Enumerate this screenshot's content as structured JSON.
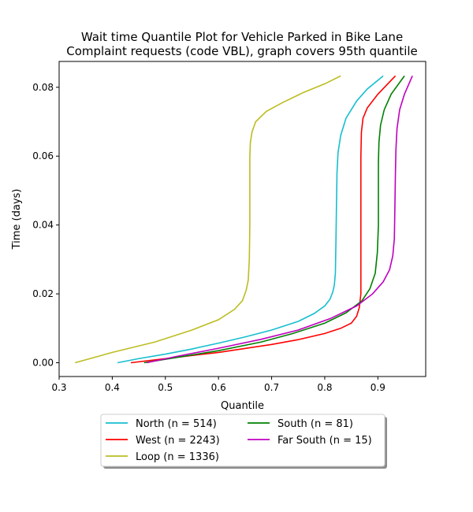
{
  "chart_data": {
    "type": "line",
    "title": "Wait time Quantile Plot for Vehicle Parked in Bike Lane",
    "subtitle": "Complaint  requests (code VBL), graph covers 95th quantile",
    "xlabel": "Quantile",
    "ylabel": "Time (days)",
    "xlim": [
      0.3,
      0.99
    ],
    "ylim": [
      -0.004,
      0.0875
    ],
    "xticks": [
      0.3,
      0.4,
      0.5,
      0.6,
      0.7,
      0.8,
      0.9
    ],
    "xtick_labels": [
      "0.3",
      "0.4",
      "0.5",
      "0.6",
      "0.7",
      "0.8",
      "0.9"
    ],
    "yticks": [
      0.0,
      0.02,
      0.04,
      0.06,
      0.08
    ],
    "ytick_labels": [
      "0.00",
      "0.02",
      "0.04",
      "0.06",
      "0.08"
    ],
    "grid": false,
    "legend_placement": "below",
    "series": [
      {
        "name": "North (n = 514)",
        "color": "#17becf",
        "x": [
          0.41,
          0.45,
          0.5,
          0.55,
          0.6,
          0.65,
          0.7,
          0.75,
          0.78,
          0.8,
          0.81,
          0.815,
          0.818,
          0.82,
          0.821,
          0.822,
          0.823,
          0.825,
          0.83,
          0.84,
          0.86,
          0.88,
          0.91
        ],
        "y": [
          0.0,
          0.0012,
          0.0025,
          0.004,
          0.0057,
          0.0075,
          0.0095,
          0.012,
          0.0143,
          0.0165,
          0.0185,
          0.0205,
          0.0225,
          0.026,
          0.035,
          0.045,
          0.055,
          0.061,
          0.066,
          0.071,
          0.076,
          0.0795,
          0.0833
        ]
      },
      {
        "name": "West (n = 2243)",
        "color": "#ff0000",
        "x": [
          0.435,
          0.5,
          0.6,
          0.7,
          0.75,
          0.8,
          0.83,
          0.85,
          0.86,
          0.865,
          0.868,
          0.868,
          0.868,
          0.869,
          0.872,
          0.88,
          0.9,
          0.933
        ],
        "y": [
          0.0,
          0.0012,
          0.003,
          0.0053,
          0.0067,
          0.0085,
          0.01,
          0.0115,
          0.0135,
          0.016,
          0.02,
          0.04,
          0.06,
          0.067,
          0.071,
          0.074,
          0.078,
          0.0833
        ]
      },
      {
        "name": "Loop (n = 1336)",
        "color": "#bcbd22",
        "x": [
          0.33,
          0.4,
          0.48,
          0.55,
          0.6,
          0.63,
          0.645,
          0.652,
          0.656,
          0.658,
          0.659,
          0.659,
          0.66,
          0.663,
          0.67,
          0.69,
          0.72,
          0.76,
          0.8,
          0.83
        ],
        "y": [
          0.0,
          0.003,
          0.006,
          0.0095,
          0.0125,
          0.0155,
          0.018,
          0.021,
          0.024,
          0.03,
          0.04,
          0.06,
          0.064,
          0.067,
          0.07,
          0.073,
          0.0755,
          0.0785,
          0.081,
          0.0833
        ]
      },
      {
        "name": "South (n = 81)",
        "color": "#008000",
        "x": [
          0.46,
          0.52,
          0.6,
          0.68,
          0.74,
          0.8,
          0.84,
          0.87,
          0.885,
          0.895,
          0.899,
          0.901,
          0.901,
          0.902,
          0.905,
          0.912,
          0.925,
          0.95
        ],
        "y": [
          0.0,
          0.0015,
          0.0035,
          0.006,
          0.0085,
          0.0115,
          0.0145,
          0.018,
          0.0215,
          0.026,
          0.032,
          0.04,
          0.058,
          0.064,
          0.069,
          0.0735,
          0.078,
          0.0833
        ]
      },
      {
        "name": "Far South (n = 15)",
        "color": "#bf00bf",
        "x": [
          0.465,
          0.52,
          0.6,
          0.68,
          0.75,
          0.81,
          0.86,
          0.89,
          0.91,
          0.922,
          0.928,
          0.931,
          0.932,
          0.933,
          0.934,
          0.936,
          0.941,
          0.95,
          0.965
        ],
        "y": [
          0.0,
          0.0018,
          0.0042,
          0.0068,
          0.0095,
          0.0128,
          0.0165,
          0.02,
          0.0235,
          0.027,
          0.031,
          0.036,
          0.045,
          0.055,
          0.062,
          0.068,
          0.0735,
          0.078,
          0.0833
        ]
      }
    ]
  }
}
